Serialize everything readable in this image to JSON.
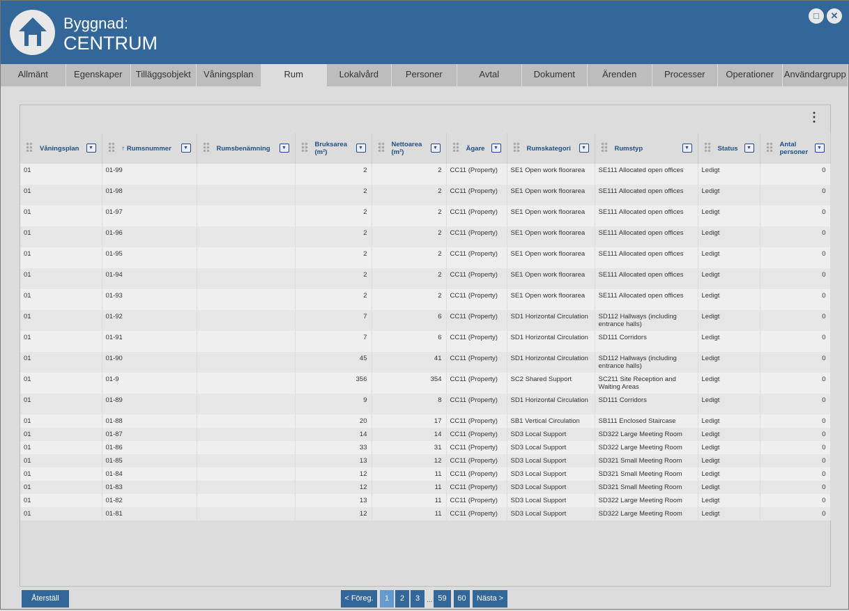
{
  "header": {
    "title_label": "Byggnad:",
    "title_value": "CENTRUM",
    "icon": "home-icon",
    "maximize": "□",
    "close": "✕"
  },
  "tabs": [
    "Allmänt",
    "Egenskaper",
    "Tilläggsobjekt",
    "Våningsplan",
    "Rum",
    "Lokalvård",
    "Personer",
    "Avtal",
    "Dokument",
    "Ärenden",
    "Processer",
    "Operationer",
    "Användargrupp"
  ],
  "active_tab": "Rum",
  "menu": "⋮",
  "columns": [
    {
      "label": "Våningsplan",
      "align": "left",
      "width": 117
    },
    {
      "label": "↑ Rumsnummer",
      "align": "left",
      "width": 136
    },
    {
      "label": "Rumsbenämning",
      "align": "left",
      "width": 141
    },
    {
      "label": "Bruksarea (m²)",
      "align": "right",
      "width": 110
    },
    {
      "label": "Nettoarea (m²)",
      "align": "right",
      "width": 107
    },
    {
      "label": "Ägare",
      "align": "left",
      "width": 87
    },
    {
      "label": "Rumskategori",
      "align": "left",
      "width": 126
    },
    {
      "label": "Rumstyp",
      "align": "left",
      "width": 148
    },
    {
      "label": "Status",
      "align": "left",
      "width": 89
    },
    {
      "label": "Antal personer",
      "align": "right",
      "width": 101
    }
  ],
  "rows": [
    [
      "01",
      "01-99",
      "",
      "2",
      "2",
      "CC11 (Property)",
      "SE1 Open work floorarea",
      "SE111 Allocated open offices",
      "Ledigt",
      "0"
    ],
    [
      "01",
      "01-98",
      "",
      "2",
      "2",
      "CC11 (Property)",
      "SE1 Open work floorarea",
      "SE111 Allocated open offices",
      "Ledigt",
      "0"
    ],
    [
      "01",
      "01-97",
      "",
      "2",
      "2",
      "CC11 (Property)",
      "SE1 Open work floorarea",
      "SE111 Allocated open offices",
      "Ledigt",
      "0"
    ],
    [
      "01",
      "01-96",
      "",
      "2",
      "2",
      "CC11 (Property)",
      "SE1 Open work floorarea",
      "SE111 Allocated open offices",
      "Ledigt",
      "0"
    ],
    [
      "01",
      "01-95",
      "",
      "2",
      "2",
      "CC11 (Property)",
      "SE1 Open work floorarea",
      "SE111 Allocated open offices",
      "Ledigt",
      "0"
    ],
    [
      "01",
      "01-94",
      "",
      "2",
      "2",
      "CC11 (Property)",
      "SE1 Open work floorarea",
      "SE111 Allocated open offices",
      "Ledigt",
      "0"
    ],
    [
      "01",
      "01-93",
      "",
      "2",
      "2",
      "CC11 (Property)",
      "SE1 Open work floorarea",
      "SE111 Allocated open offices",
      "Ledigt",
      "0"
    ],
    [
      "01",
      "01-92",
      "",
      "7",
      "6",
      "CC11 (Property)",
      "SD1 Horizontal Circulation",
      "SD112 Hallways (including entrance halls)",
      "Ledigt",
      "0"
    ],
    [
      "01",
      "01-91",
      "",
      "7",
      "6",
      "CC11 (Property)",
      "SD1 Horizontal Circulation",
      "SD111 Corridors",
      "Ledigt",
      "0"
    ],
    [
      "01",
      "01-90",
      "",
      "45",
      "41",
      "CC11 (Property)",
      "SD1 Horizontal Circulation",
      "SD112 Hallways (including entrance halls)",
      "Ledigt",
      "0"
    ],
    [
      "01",
      "01-9",
      "",
      "356",
      "354",
      "CC11 (Property)",
      "SC2 Shared Support",
      "SC211 Site Reception and Waiting Areas",
      "Ledigt",
      "0"
    ],
    [
      "01",
      "01-89",
      "",
      "9",
      "8",
      "CC11 (Property)",
      "SD1 Horizontal Circulation",
      "SD111 Corridors",
      "Ledigt",
      "0"
    ],
    [
      "01",
      "01-88",
      "",
      "20",
      "17",
      "CC11 (Property)",
      "SB1 Vertical Circulation",
      "SB111 Enclosed Staircase",
      "Ledigt",
      "0"
    ],
    [
      "01",
      "01-87",
      "",
      "14",
      "14",
      "CC11 (Property)",
      "SD3 Local Support",
      "SD322 Large Meeting Room",
      "Ledigt",
      "0"
    ],
    [
      "01",
      "01-86",
      "",
      "33",
      "31",
      "CC11 (Property)",
      "SD3 Local Support",
      "SD322 Large Meeting Room",
      "Ledigt",
      "0"
    ],
    [
      "01",
      "01-85",
      "",
      "13",
      "12",
      "CC11 (Property)",
      "SD3 Local Support",
      "SD321 Small Meeting Room",
      "Ledigt",
      "0"
    ],
    [
      "01",
      "01-84",
      "",
      "12",
      "11",
      "CC11 (Property)",
      "SD3 Local Support",
      "SD321 Small Meeting Room",
      "Ledigt",
      "0"
    ],
    [
      "01",
      "01-83",
      "",
      "12",
      "11",
      "CC11 (Property)",
      "SD3 Local Support",
      "SD321 Small Meeting Room",
      "Ledigt",
      "0"
    ],
    [
      "01",
      "01-82",
      "",
      "13",
      "11",
      "CC11 (Property)",
      "SD3 Local Support",
      "SD322 Large Meeting Room",
      "Ledigt",
      "0"
    ],
    [
      "01",
      "01-81",
      "",
      "12",
      "11",
      "CC11 (Property)",
      "SD3 Local Support",
      "SD322 Large Meeting Room",
      "Ledigt",
      "0"
    ]
  ],
  "footer": {
    "reset": "Återställ",
    "prev": "< Föreg.",
    "pages": [
      "1",
      "2",
      "3",
      "59",
      "60"
    ],
    "current_page": "1",
    "ellipsis": "...",
    "next": "Nästa >"
  }
}
